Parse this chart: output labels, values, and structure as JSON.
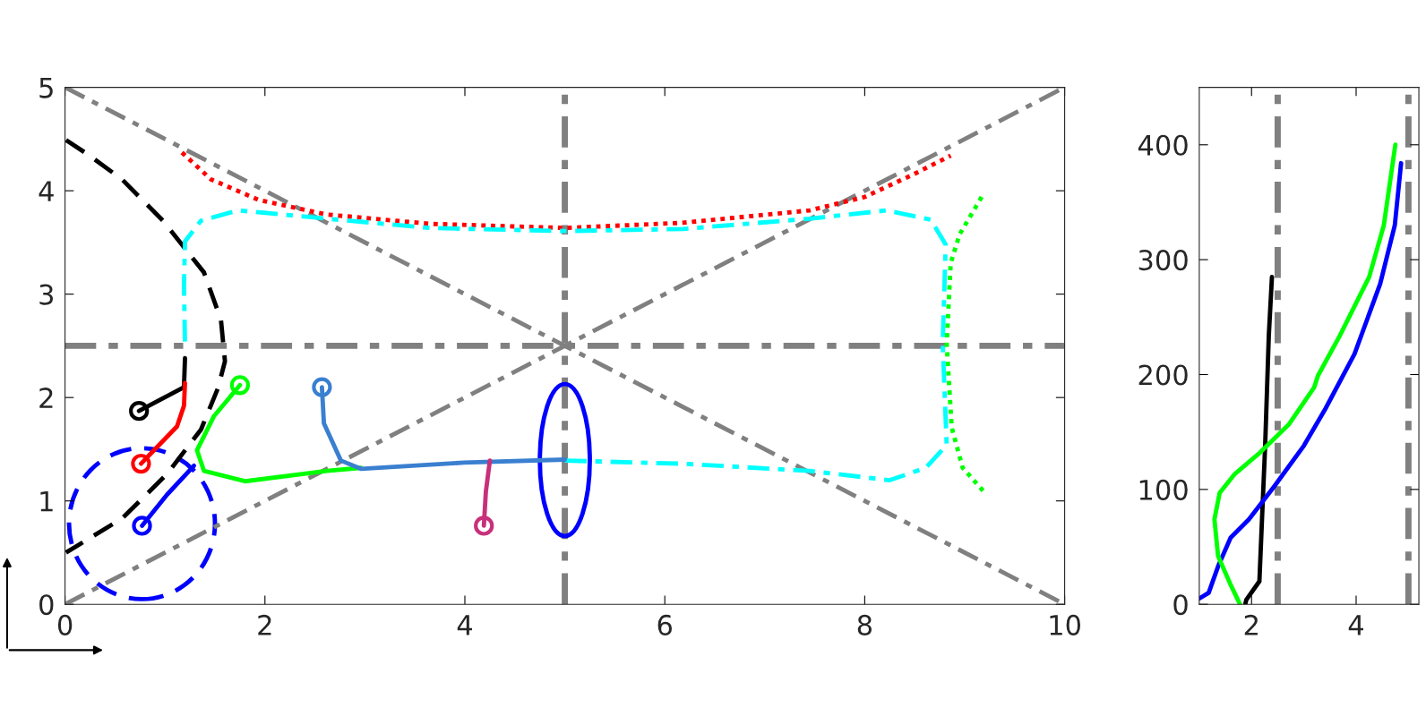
{
  "chart_data": [
    {
      "type": "line",
      "xlim": [
        0,
        10
      ],
      "ylim": [
        0,
        5
      ],
      "xticks": [
        0,
        2,
        4,
        6,
        8,
        10
      ],
      "yticks": [
        0,
        1,
        2,
        3,
        4,
        5
      ],
      "grid": false,
      "ref_lines": [
        {
          "axis": "x",
          "value": 5,
          "color": "#808080",
          "line_style": "dashdot"
        },
        {
          "axis": "y",
          "value": 2.5,
          "color": "#808080",
          "line_style": "dashdot"
        }
      ],
      "series": [
        {
          "color": "#808080",
          "line_style": "dashdot",
          "x": [
            0,
            10
          ],
          "values": [
            0,
            5
          ]
        },
        {
          "color": "#808080",
          "line_style": "dashdot",
          "x": [
            0,
            10
          ],
          "values": [
            5,
            0
          ]
        },
        {
          "color": "#000000",
          "line_style": "dashed",
          "x": [
            0.01,
            0.23,
            0.57,
            0.98,
            1.39,
            1.56,
            1.6,
            1.53,
            1.36,
            1.02,
            0.57,
            0.01
          ],
          "values": [
            4.49,
            4.35,
            4.11,
            3.71,
            3.21,
            2.75,
            2.35,
            2.09,
            1.69,
            1.26,
            0.83,
            0.5
          ]
        },
        {
          "color": "#ff0000",
          "line_style": "dotted",
          "x": [
            1.17,
            1.46,
            1.94,
            2.62,
            3.65,
            5.0,
            6.18,
            7.45,
            8.0,
            8.47,
            8.86
          ],
          "values": [
            4.37,
            4.11,
            3.91,
            3.77,
            3.68,
            3.64,
            3.69,
            3.81,
            3.94,
            4.15,
            4.34
          ]
        },
        {
          "color": "#00ffff",
          "line_style": "dashdot",
          "x": [
            5.0,
            6.18,
            7.45,
            8.25,
            8.61,
            8.82,
            8.78,
            8.81,
            8.66,
            8.22,
            7.45,
            6.18,
            5.0,
            3.65,
            2.62,
            1.73,
            1.36,
            1.2,
            1.19,
            1.2
          ],
          "values": [
            1.39,
            1.36,
            1.29,
            1.2,
            1.32,
            1.54,
            2.52,
            3.48,
            3.72,
            3.81,
            3.73,
            3.63,
            3.61,
            3.64,
            3.73,
            3.81,
            3.71,
            3.51,
            3.08,
            2.52
          ]
        },
        {
          "color": "#00ff00",
          "line_style": "dotted",
          "x": [
            9.17,
            8.95,
            8.86,
            8.82,
            8.87,
            8.98,
            9.2
          ],
          "values": [
            3.94,
            3.58,
            3.3,
            2.52,
            1.71,
            1.32,
            1.08
          ]
        },
        {
          "color": "#000000",
          "line_style": "solid",
          "x": [
            0.74,
            1.19,
            1.2
          ],
          "values": [
            1.87,
            2.1,
            2.38
          ]
        },
        {
          "color": "#ff0000",
          "line_style": "solid",
          "x": [
            0.76,
            0.91,
            1.12,
            1.19,
            1.2
          ],
          "values": [
            1.36,
            1.51,
            1.72,
            1.92,
            2.14
          ]
        },
        {
          "color": "#0000ff",
          "line_style": "solid",
          "x": [
            0.77,
            1.02,
            1.29
          ],
          "values": [
            0.76,
            1.06,
            1.34
          ]
        },
        {
          "color": "#00ff00",
          "line_style": "solid",
          "x": [
            1.75,
            1.49,
            1.32,
            1.39,
            1.8,
            2.62,
            2.96
          ],
          "values": [
            2.12,
            1.82,
            1.49,
            1.29,
            1.19,
            1.29,
            1.32
          ]
        },
        {
          "color": "#3a7fd0",
          "line_style": "solid",
          "x": [
            2.57,
            2.59,
            2.76,
            2.96,
            3.99,
            5.0
          ],
          "values": [
            2.1,
            1.75,
            1.39,
            1.31,
            1.37,
            1.4
          ]
        },
        {
          "color": "#c8307a",
          "line_style": "solid",
          "x": [
            4.19,
            4.21,
            4.25
          ],
          "values": [
            0.76,
            1.09,
            1.39
          ]
        },
        {
          "type": "scatter",
          "marker": "circle",
          "color": "#000000",
          "x": [
            0.74
          ],
          "values": [
            1.87
          ]
        },
        {
          "type": "scatter",
          "marker": "circle",
          "color": "#ff0000",
          "x": [
            0.76
          ],
          "values": [
            1.36
          ]
        },
        {
          "type": "scatter",
          "marker": "circle",
          "color": "#0000ff",
          "x": [
            0.77
          ],
          "values": [
            0.76
          ]
        },
        {
          "type": "scatter",
          "marker": "circle",
          "color": "#00ff00",
          "x": [
            1.75
          ],
          "values": [
            2.12
          ]
        },
        {
          "type": "scatter",
          "marker": "circle",
          "color": "#3a7fd0",
          "x": [
            2.57
          ],
          "values": [
            2.1
          ]
        },
        {
          "type": "scatter",
          "marker": "circle",
          "color": "#c8307a",
          "x": [
            4.19
          ],
          "values": [
            0.76
          ]
        }
      ]
    },
    {
      "type": "line",
      "xlim": [
        1,
        5.2
      ],
      "ylim": [
        0,
        450
      ],
      "xticks": [
        2,
        4
      ],
      "yticks": [
        0,
        100,
        200,
        300,
        400
      ],
      "grid": false,
      "ref_lines": [
        {
          "axis": "x",
          "value": 2.5,
          "color": "#808080",
          "line_style": "dashdot"
        },
        {
          "axis": "x",
          "value": 5,
          "color": "#808080",
          "line_style": "dashdot"
        }
      ],
      "series": [
        {
          "color": "#000000",
          "line_style": "solid",
          "x": [
            1.88,
            1.9,
            2.15,
            2.2,
            2.26,
            2.33,
            2.39
          ],
          "values": [
            0,
            4,
            20,
            74,
            138,
            234,
            285
          ]
        },
        {
          "color": "#0000ff",
          "line_style": "solid",
          "x": [
            1.0,
            1.18,
            1.36,
            1.6,
            1.95,
            2.44,
            3.0,
            3.41,
            3.97,
            4.46,
            4.74,
            4.86
          ],
          "values": [
            5,
            10,
            33,
            58,
            74,
            103,
            138,
            170,
            218,
            279,
            330,
            384
          ]
        },
        {
          "color": "#00ff00",
          "line_style": "solid",
          "x": [
            1.78,
            1.6,
            1.36,
            1.29,
            1.39,
            1.67,
            2.16,
            2.72,
            3.2,
            3.27,
            3.69,
            4.25,
            4.53,
            4.75
          ],
          "values": [
            0,
            17,
            42,
            74,
            97,
            113,
            132,
            157,
            189,
            199,
            234,
            285,
            330,
            400
          ]
        }
      ]
    }
  ]
}
